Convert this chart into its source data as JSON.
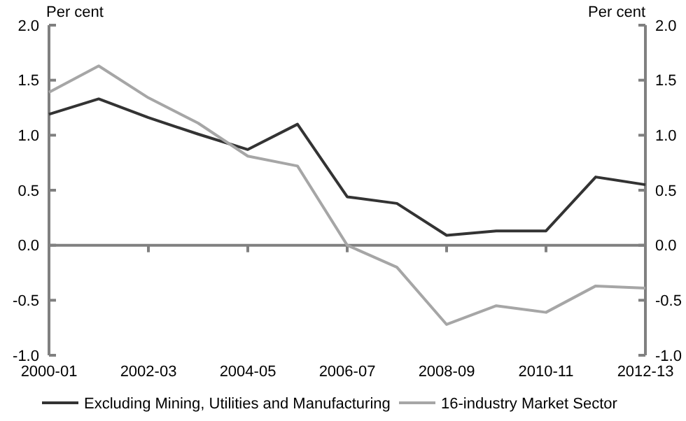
{
  "chart_data": {
    "type": "line",
    "ylabel": "Per cent",
    "y2label": "Per cent",
    "categories": [
      "2000-01",
      null,
      "2002-03",
      null,
      "2004-05",
      null,
      "2006-07",
      null,
      "2008-09",
      null,
      "2010-11",
      null,
      "2012-13"
    ],
    "series": [
      {
        "name": "Excluding Mining, Utilities and Manufacturing",
        "color": "#333333",
        "values": [
          1.19,
          1.33,
          1.16,
          1.01,
          0.87,
          1.1,
          0.44,
          0.38,
          0.09,
          0.13,
          0.13,
          0.62,
          0.55
        ]
      },
      {
        "name": "16-industry Market Sector",
        "color": "#a6a6a6",
        "values": [
          1.39,
          1.63,
          1.34,
          1.11,
          0.81,
          0.72,
          0.0,
          -0.2,
          -0.72,
          -0.55,
          -0.61,
          -0.37,
          -0.39
        ]
      }
    ],
    "ylim": [
      -1,
      2
    ],
    "yticks": [
      {
        "value": -1,
        "label": "-1.0"
      },
      {
        "value": -0.5,
        "label": "-0.5"
      },
      {
        "value": 0,
        "label": "0.0"
      },
      {
        "value": 0.5,
        "label": "0.5"
      },
      {
        "value": 1,
        "label": "1.0"
      },
      {
        "value": 1.5,
        "label": "1.5"
      },
      {
        "value": 2,
        "label": "2.0"
      }
    ],
    "y2lim": [
      -1,
      2
    ],
    "y2ticks": [
      {
        "value": -1,
        "label": "-1.0"
      },
      {
        "value": -0.5,
        "label": "-0.5"
      },
      {
        "value": 0,
        "label": "0.0"
      },
      {
        "value": 0.5,
        "label": "0.5"
      },
      {
        "value": 1,
        "label": "1.0"
      },
      {
        "value": 1.5,
        "label": "1.5"
      },
      {
        "value": 2,
        "label": "2.0"
      }
    ],
    "legend": "bottom",
    "marker": "none",
    "line_style": "solid"
  }
}
